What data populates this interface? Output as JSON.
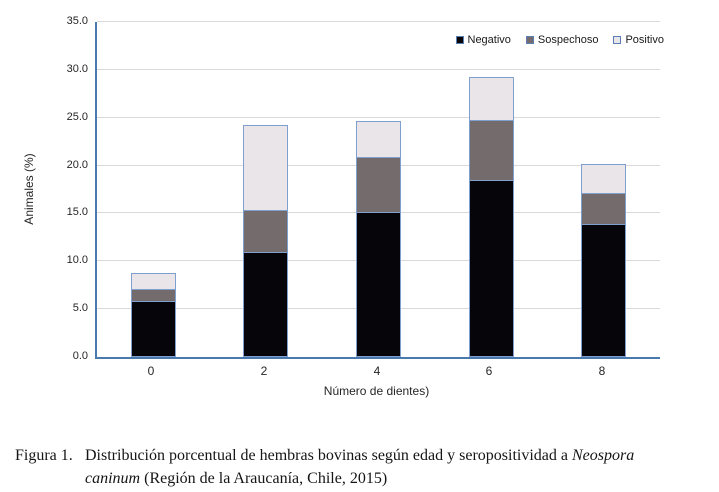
{
  "figure": {
    "caption": {
      "label": "Figura 1.",
      "line1_text": "Distribución porcentual de hembras bovinas según edad y seropositividad a ",
      "line1_italic": "Neospora",
      "line2_italic": "caninum",
      "line2_text": " (Región de la Araucanía, Chile, 2015)"
    }
  },
  "chart_data": {
    "type": "bar",
    "stacked": true,
    "title": "",
    "xlabel": "Número de dientes)",
    "ylabel": "Animales (%)",
    "ylim": [
      0,
      35
    ],
    "ytick_step": 5,
    "ytick_labels": [
      "0.0",
      "5.0",
      "10.0",
      "15.0",
      "20.0",
      "25.0",
      "30.0",
      "35.0"
    ],
    "categories": [
      "0",
      "2",
      "4",
      "6",
      "8"
    ],
    "series": [
      {
        "name": "Negativo",
        "color": "#06060a",
        "values": [
          5.8,
          11.0,
          15.2,
          18.5,
          13.9
        ]
      },
      {
        "name": "Sospechoso",
        "color": "#746c6c",
        "values": [
          1.4,
          4.5,
          5.9,
          6.4,
          3.3
        ]
      },
      {
        "name": "Positivo",
        "color": "#e9e5e9",
        "values": [
          1.8,
          9.0,
          3.9,
          4.6,
          3.1
        ]
      }
    ],
    "legend_position": "top-right",
    "grid": "horizontal",
    "colors": {
      "axis": "#4a79ae",
      "gridline": "#d9d9d9",
      "bar_border": "#7f9fce",
      "negativo": "#06060a",
      "sospechoso": "#746c6c",
      "positivo": "#e9e5e9"
    }
  }
}
